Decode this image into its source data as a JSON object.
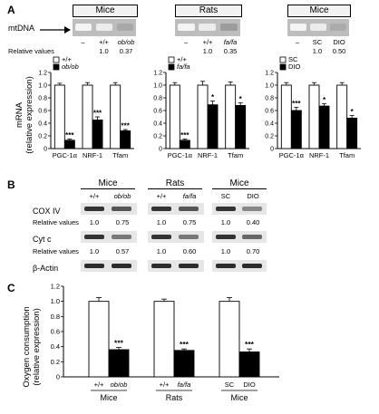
{
  "panels": {
    "A": {
      "letter": "A",
      "mtdna_label": "mtDNA",
      "relative_values_label": "Relative values",
      "ylabel_line1": "mRNA",
      "ylabel_line2": "(relative expression)",
      "groups": [
        {
          "title": "Mice",
          "lanes": [
            "–",
            "+/+",
            "ob/ob"
          ],
          "relative_values": [
            "1.0",
            "0.37"
          ]
        },
        {
          "title": "Rats",
          "lanes": [
            "–",
            "+/+",
            "fa/fa"
          ],
          "relative_values": [
            "1.0",
            "0.35"
          ]
        },
        {
          "title": "Mice",
          "lanes": [
            "–",
            "SC",
            "DIO"
          ],
          "relative_values": [
            "1.0",
            "0.50"
          ]
        }
      ]
    },
    "B": {
      "letter": "B",
      "groups": [
        {
          "title": "Mice",
          "lanes": [
            "+/+",
            "ob/ob"
          ]
        },
        {
          "title": "Rats",
          "lanes": [
            "+/+",
            "fa/fa"
          ]
        },
        {
          "title": "Mice",
          "lanes": [
            "SC",
            "DIO"
          ]
        }
      ],
      "rows": [
        {
          "label": "COX IV",
          "rel_label": "Relative values",
          "values": [
            [
              "1.0",
              "0.75"
            ],
            [
              "1.0",
              "0.75"
            ],
            [
              "1.0",
              "0.40"
            ]
          ]
        },
        {
          "label": "Cyt c",
          "rel_label": "Relative values",
          "values": [
            [
              "1.0",
              "0.57"
            ],
            [
              "1.0",
              "0.60"
            ],
            [
              "1.0",
              "0.70"
            ]
          ]
        },
        {
          "label": "β-Actin"
        }
      ]
    },
    "C": {
      "letter": "C",
      "ylabel_line1": "Oxygen consumption",
      "ylabel_line2": "(relative expression)"
    }
  },
  "chart_data": [
    {
      "type": "bar",
      "categories": [
        "PGC-1α",
        "NRF-1",
        "Tfam"
      ],
      "series": [
        {
          "name": "+/+",
          "values": [
            1.0,
            1.0,
            1.0
          ]
        },
        {
          "name": "ob/ob",
          "values": [
            0.13,
            0.45,
            0.28
          ]
        }
      ],
      "errors": [
        [
          0.03,
          0.04,
          0.04
        ],
        [
          0.02,
          0.05,
          0.02
        ]
      ],
      "significance": [
        "***",
        "***",
        "***"
      ],
      "ylim": [
        0,
        1.2
      ],
      "yticks": [
        "0",
        "0.2",
        "0.4",
        "0.6",
        "0.8",
        "1.0",
        "1.2"
      ],
      "ylabel": "mRNA (relative expression)",
      "legend": "top-left"
    },
    {
      "type": "bar",
      "categories": [
        "PGC-1α",
        "NRF-1",
        "Tfam"
      ],
      "series": [
        {
          "name": "+/+",
          "values": [
            1.0,
            1.0,
            1.0
          ]
        },
        {
          "name": "fa/fa",
          "values": [
            0.13,
            0.69,
            0.68
          ]
        }
      ],
      "errors": [
        [
          0.04,
          0.06,
          0.05
        ],
        [
          0.02,
          0.06,
          0.04
        ]
      ],
      "significance": [
        "***",
        "*",
        "*"
      ],
      "ylim": [
        0,
        1.2
      ],
      "yticks": [
        "0",
        "0.2",
        "0.4",
        "0.6",
        "0.8",
        "1.0",
        "1.2"
      ],
      "legend": "top-left"
    },
    {
      "type": "bar",
      "categories": [
        "PGC-1α",
        "NRF-1",
        "Tfam"
      ],
      "series": [
        {
          "name": "SC",
          "values": [
            1.0,
            1.0,
            1.0
          ]
        },
        {
          "name": "DIO",
          "values": [
            0.6,
            0.67,
            0.48
          ]
        }
      ],
      "errors": [
        [
          0.04,
          0.04,
          0.04
        ],
        [
          0.05,
          0.04,
          0.04
        ]
      ],
      "significance": [
        "***",
        "*",
        "*"
      ],
      "ylim": [
        0,
        1.2
      ],
      "yticks": [
        "0",
        "0.2",
        "0.4",
        "0.6",
        "0.8",
        "1.0",
        "1.2"
      ],
      "legend": "top-left"
    },
    {
      "type": "bar",
      "groups": [
        "Mice",
        "Rats",
        "Mice"
      ],
      "categories": [
        "+/+",
        "ob/ob",
        "+/+",
        "fa/fa",
        "SC",
        "DIO"
      ],
      "values": [
        1.0,
        0.36,
        1.0,
        0.35,
        1.0,
        0.33
      ],
      "errors": [
        0.05,
        0.03,
        0.03,
        0.02,
        0.05,
        0.04
      ],
      "filled": [
        false,
        true,
        false,
        true,
        false,
        true
      ],
      "significance": [
        "",
        "***",
        "",
        "***",
        "",
        "***"
      ],
      "ylim": [
        0,
        1.2
      ],
      "yticks": [
        "0",
        "0.2",
        "0.4",
        "0.6",
        "0.8",
        "1.0",
        "1.2"
      ],
      "ylabel": "Oxygen consumption (relative expression)"
    }
  ]
}
